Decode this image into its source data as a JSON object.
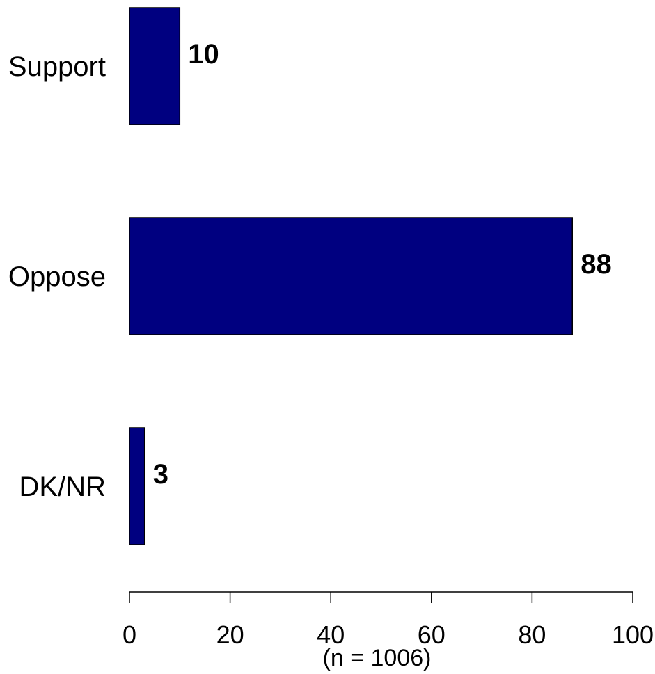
{
  "chart_data": {
    "type": "bar",
    "orientation": "horizontal",
    "categories": [
      "Support",
      "Oppose",
      "DK/NR"
    ],
    "values": [
      10,
      88,
      3
    ],
    "value_labels": [
      "10",
      "88",
      "3"
    ],
    "xlabel": "(n = 1006)",
    "xlim": [
      0,
      100
    ],
    "xticks": [
      0,
      20,
      40,
      60,
      80,
      100
    ],
    "xtick_labels": [
      "0",
      "20",
      "40",
      "60",
      "80",
      "100"
    ],
    "bar_color": "#000080",
    "grid": false,
    "legend": "none"
  }
}
